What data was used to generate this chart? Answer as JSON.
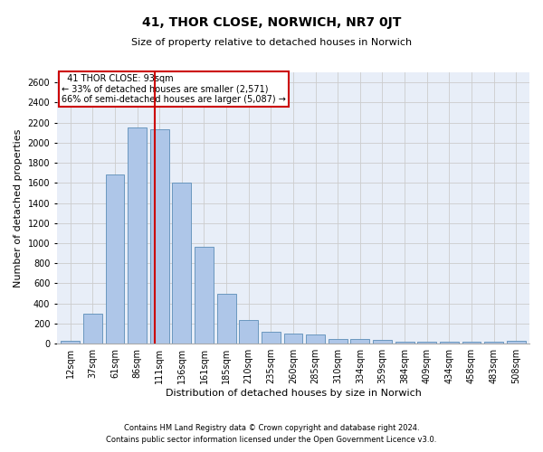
{
  "title": "41, THOR CLOSE, NORWICH, NR7 0JT",
  "subtitle": "Size of property relative to detached houses in Norwich",
  "xlabel": "Distribution of detached houses by size in Norwich",
  "ylabel": "Number of detached properties",
  "footnote1": "Contains HM Land Registry data © Crown copyright and database right 2024.",
  "footnote2": "Contains public sector information licensed under the Open Government Licence v3.0.",
  "categories": [
    "12sqm",
    "37sqm",
    "61sqm",
    "86sqm",
    "111sqm",
    "136sqm",
    "161sqm",
    "185sqm",
    "210sqm",
    "235sqm",
    "260sqm",
    "285sqm",
    "310sqm",
    "334sqm",
    "359sqm",
    "384sqm",
    "409sqm",
    "434sqm",
    "458sqm",
    "483sqm",
    "508sqm"
  ],
  "values": [
    25,
    300,
    1680,
    2150,
    2130,
    1600,
    960,
    500,
    235,
    120,
    100,
    95,
    45,
    45,
    35,
    20,
    20,
    20,
    20,
    20,
    25
  ],
  "bar_color": "#aec6e8",
  "bar_edge_color": "#5b8db8",
  "grid_color": "#cccccc",
  "bg_color": "#e8eef8",
  "vline_x": 3.78,
  "vline_color": "#cc0000",
  "annotation_text": "  41 THOR CLOSE: 93sqm\n← 33% of detached houses are smaller (2,571)\n66% of semi-detached houses are larger (5,087) →",
  "annotation_box_color": "#cc0000",
  "ylim": [
    0,
    2700
  ],
  "yticks": [
    0,
    200,
    400,
    600,
    800,
    1000,
    1200,
    1400,
    1600,
    1800,
    2000,
    2200,
    2400,
    2600
  ],
  "title_fontsize": 10,
  "subtitle_fontsize": 8,
  "ylabel_fontsize": 8,
  "xlabel_fontsize": 8,
  "tick_fontsize": 7,
  "annotation_fontsize": 7,
  "footnote_fontsize": 6
}
